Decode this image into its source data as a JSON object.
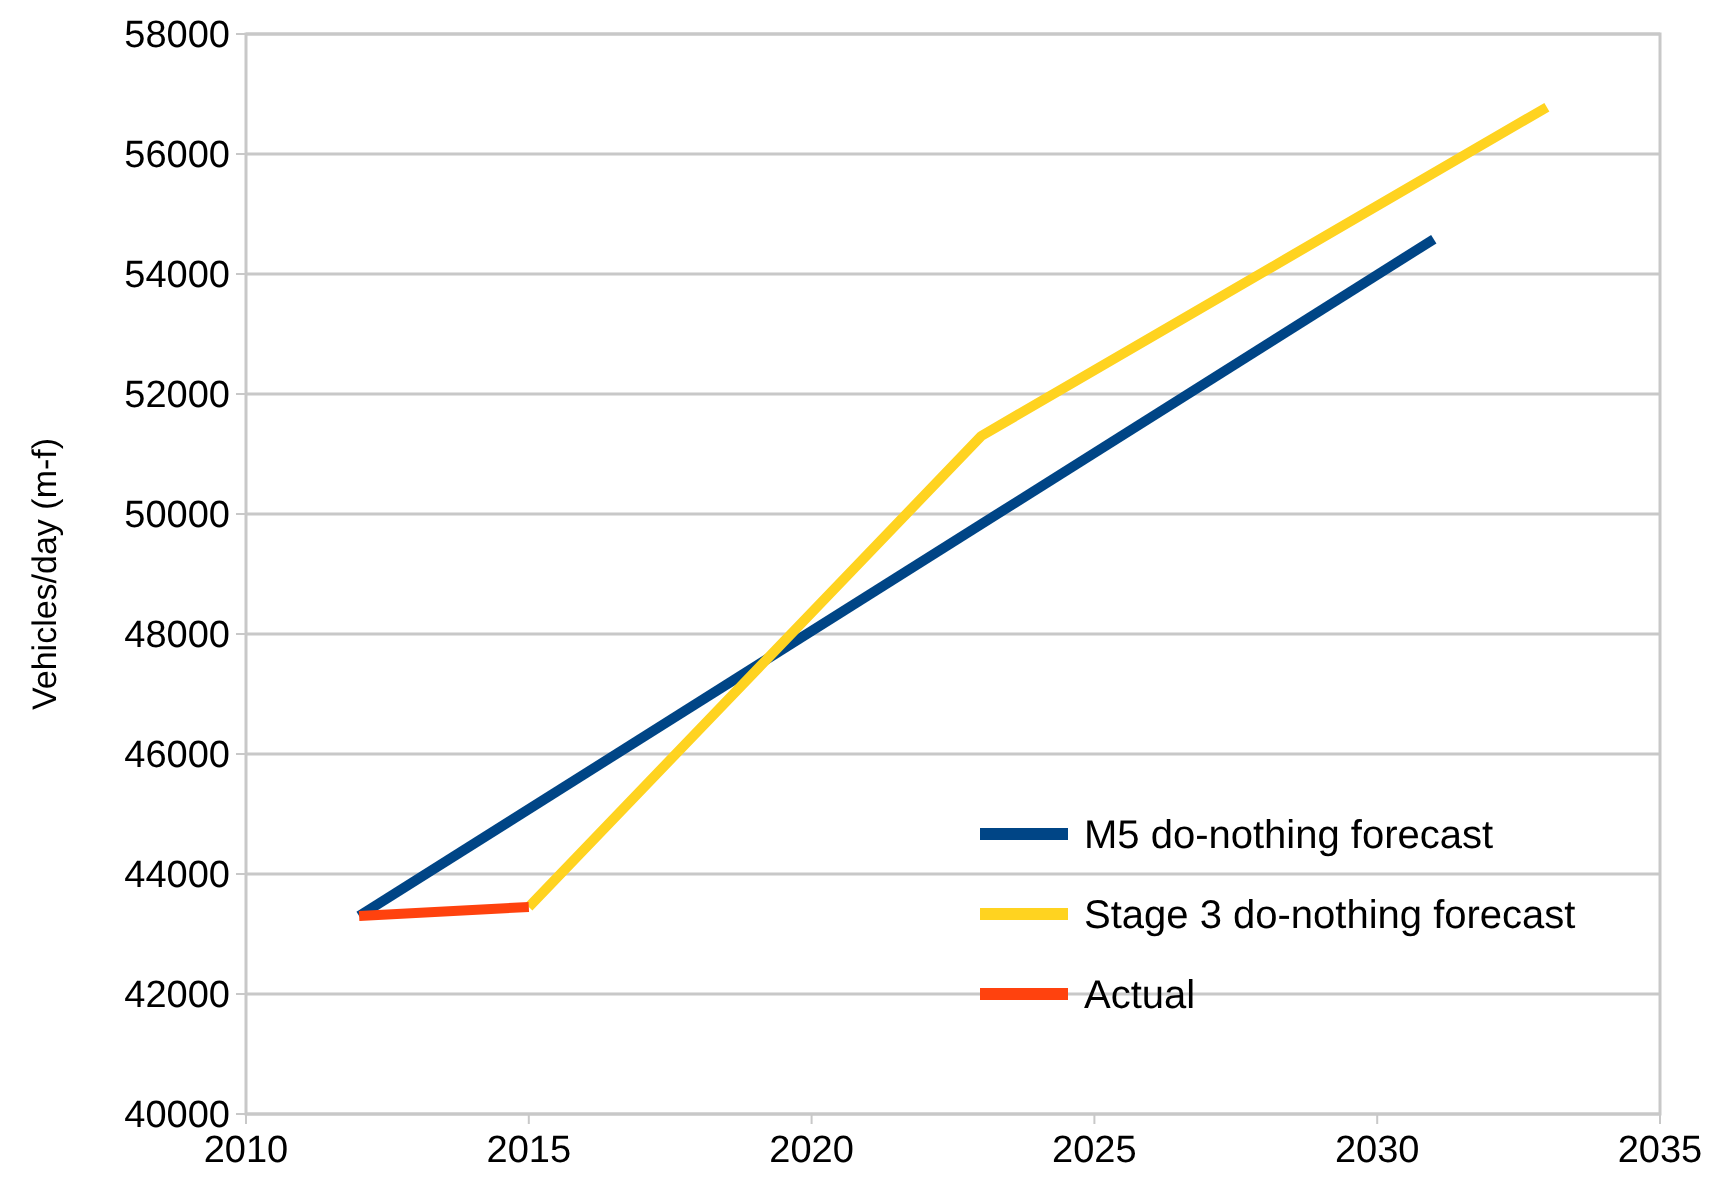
{
  "chart_data": {
    "type": "line",
    "ylabel": "Vehicles/day (m-f)",
    "xlim": [
      2010,
      2035
    ],
    "xticks": [
      2010,
      2015,
      2020,
      2025,
      2030,
      2035
    ],
    "ylim": [
      40000,
      58000
    ],
    "yticks": [
      40000,
      42000,
      44000,
      46000,
      48000,
      50000,
      52000,
      54000,
      56000,
      58000
    ],
    "grid": "y",
    "legend": "bottom right",
    "line_style": "solid",
    "series": [
      {
        "name": "M5 do-nothing forecast",
        "color": "#004586",
        "x": [
          2012,
          2031
        ],
        "values": [
          43300,
          54580
        ]
      },
      {
        "name": "Stage 3 do-nothing forecast",
        "color": "#ffd320",
        "x": [
          2015,
          2023,
          2033
        ],
        "values": [
          43450,
          51300,
          56780
        ]
      },
      {
        "name": "Actual",
        "color": "#ff420e",
        "x": [
          2012,
          2015
        ],
        "values": [
          43300,
          43450
        ]
      }
    ]
  }
}
